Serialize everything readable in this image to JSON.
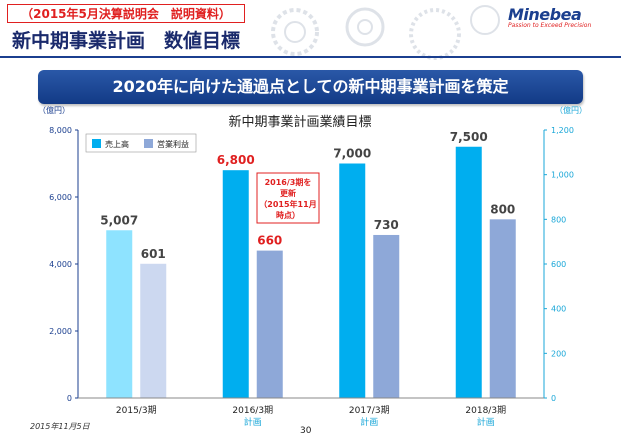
{
  "header": {
    "doc_tag": "（2015年5月決算説明会　説明資料）",
    "title": "新中期事業計画　数値目標",
    "banner": "2020年に向けた通過点としての新中期事業計画を策定"
  },
  "logo": {
    "name": "Minebea",
    "tagline": "Passion to Exceed Precision"
  },
  "footer": {
    "date": "2015年11月5日",
    "page": "30"
  },
  "chart_data": {
    "type": "bar",
    "title": "新中期事業計画業績目標",
    "categories": [
      "2015/3期",
      "2016/3期",
      "2017/3期",
      "2018/3期"
    ],
    "category_sublabels": [
      "",
      "計画",
      "計画",
      "計画"
    ],
    "y_left": {
      "unit": "（億円）",
      "ylim": [
        0,
        8000
      ],
      "ticks": [
        "0",
        "2,000",
        "4,000",
        "6,000",
        "8,000"
      ]
    },
    "y_right": {
      "unit": "（億円）",
      "ylim": [
        0,
        1200
      ],
      "ticks": [
        "0",
        "200",
        "400",
        "600",
        "800",
        "1,000",
        "1,200"
      ]
    },
    "series": [
      {
        "name": "売上高",
        "axis": "left",
        "values": [
          5007,
          6800,
          7000,
          7500
        ],
        "labels": [
          "5,007",
          "6,800",
          "7,000",
          "7,500"
        ]
      },
      {
        "name": "営業利益",
        "axis": "right",
        "values": [
          601,
          660,
          730,
          800
        ],
        "labels": [
          "601",
          "660",
          "730",
          "800"
        ]
      }
    ],
    "annotation": {
      "lines": [
        "2016/3期を",
        "更新",
        "（2015年11月",
        "時点）"
      ]
    },
    "colors": {
      "sales": "#00aeef",
      "sales_actual": "#8ee3ff",
      "op": "#8ea8d8",
      "op_actual": "#ccd8f0",
      "left_axis": "#1b3f8f",
      "right_axis": "#1aa7d8",
      "highlight_red": "#e02020"
    },
    "legend_position": "top-left",
    "grid": false
  }
}
